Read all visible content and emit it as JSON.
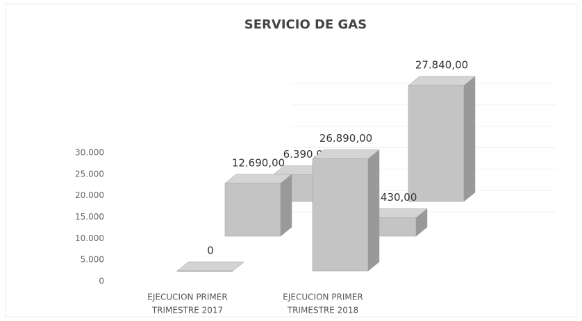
{
  "chart_data": {
    "type": "bar3d",
    "title": "SERVICIO DE GAS",
    "categories": [
      [
        "EJECUCION PRIMER",
        "TRIMESTRE 2017"
      ],
      [
        "EJECUCION PRIMER",
        "TRIMESTRE 2018"
      ]
    ],
    "series": [
      {
        "color": "#c4c4c4",
        "values": [
          0,
          26890
        ],
        "value_labels": [
          "0",
          "26.890,00"
        ]
      },
      {
        "color": "#c4c4c4",
        "values": [
          12690,
          4430
        ],
        "value_labels": [
          "12.690,00",
          "4.430,00"
        ]
      },
      {
        "color": "#c4c4c4",
        "values": [
          6390,
          27840
        ],
        "value_labels": [
          "6.390,00",
          "27.840,00"
        ]
      }
    ],
    "ylim": [
      0,
      30000
    ],
    "yticks": [
      0,
      {
        "value": 5000,
        "label": "5.000"
      },
      {
        "value": 10000,
        "label": "10.000"
      },
      {
        "value": 15000,
        "label": "15.000"
      },
      {
        "value": 20000,
        "label": "20.000"
      },
      {
        "value": 25000,
        "label": "25.000"
      },
      {
        "value": 30000,
        "label": "30.000"
      }
    ],
    "grid": true
  }
}
